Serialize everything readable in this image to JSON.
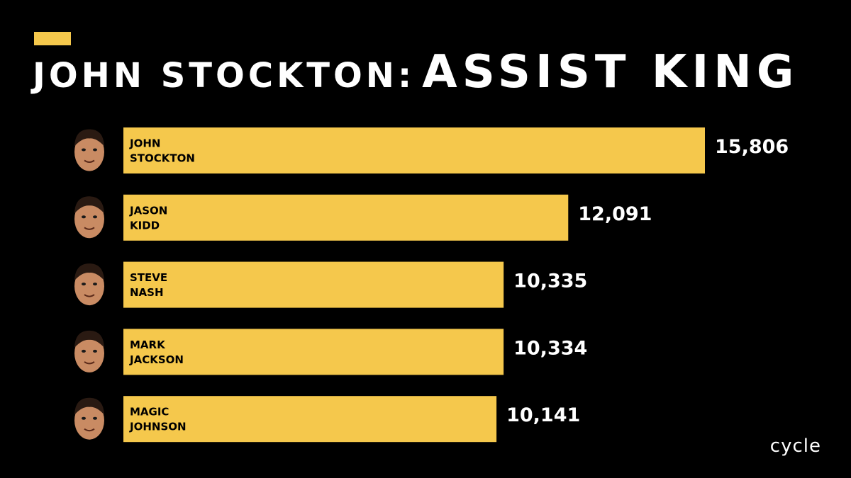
{
  "title": {
    "prefix": "JOHN STOCKTON:",
    "main": "ASSIST KING"
  },
  "logo": "cycle",
  "colors": {
    "background": "#000000",
    "bar": "#f5c84c",
    "text": "#ffffff",
    "accent": "#f5c84c"
  },
  "chart_data": {
    "type": "bar",
    "orientation": "horizontal",
    "categories": [
      [
        "JOHN",
        "STOCKTON"
      ],
      [
        "JASON",
        "KIDD"
      ],
      [
        "STEVE",
        "NASH"
      ],
      [
        "MARK",
        "JACKSON"
      ],
      [
        "MAGIC",
        "JOHNSON"
      ]
    ],
    "values": [
      15806,
      12091,
      10335,
      10334,
      10141
    ],
    "value_labels": [
      "15,806",
      "12,091",
      "10,335",
      "10,334",
      "10,141"
    ],
    "player_icons": [
      "player-face-icon",
      "player-face-icon",
      "player-face-icon",
      "player-face-icon",
      "player-face-icon"
    ],
    "grid": false,
    "legend": "none"
  }
}
